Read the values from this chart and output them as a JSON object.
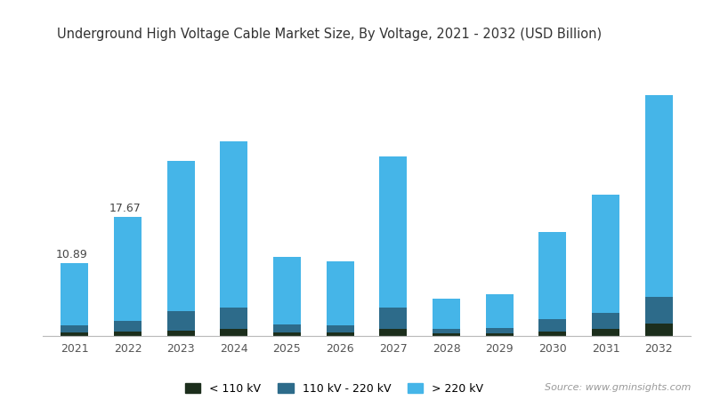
{
  "title": "Underground High Voltage Cable Market Size, By Voltage, 2021 - 2032 (USD Billion)",
  "years": [
    "2021",
    "2022",
    "2023",
    "2024",
    "2025",
    "2026",
    "2027",
    "2028",
    "2029",
    "2030",
    "2031",
    "2032"
  ],
  "less_110kv": [
    0.55,
    0.65,
    0.85,
    1.0,
    0.55,
    0.5,
    1.0,
    0.35,
    0.4,
    0.7,
    1.0,
    1.8
  ],
  "kv_110_220": [
    1.1,
    1.6,
    2.8,
    3.2,
    1.2,
    1.1,
    3.2,
    0.65,
    0.8,
    1.8,
    2.5,
    4.0
  ],
  "greater_220kv": [
    9.24,
    15.42,
    22.35,
    24.8,
    10.0,
    9.5,
    22.5,
    4.5,
    5.0,
    13.0,
    17.5,
    30.0
  ],
  "label_2021": "10.89",
  "label_2022": "17.67",
  "color_less_110": "#1c2e1c",
  "color_110_220": "#2d6b8a",
  "color_greater_220": "#45b5e8",
  "background_color": "#ffffff",
  "source_text": "Source: www.gminsights.com",
  "legend_labels": [
    "< 110 kV",
    "110 kV - 220 kV",
    "> 220 kV"
  ],
  "title_fontsize": 10.5,
  "tick_fontsize": 9,
  "legend_fontsize": 9,
  "bar_width": 0.52
}
